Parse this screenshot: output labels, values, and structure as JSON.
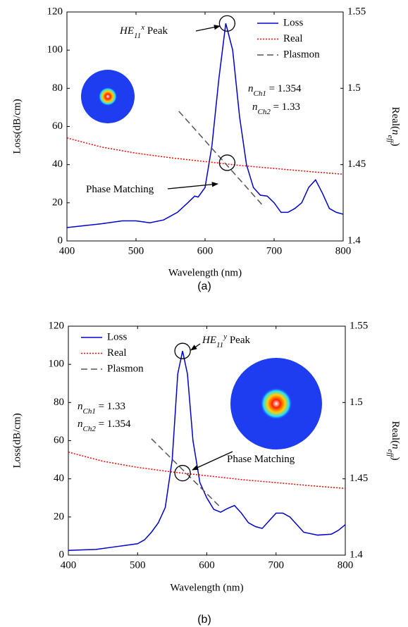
{
  "chart_data": [
    {
      "type": "line",
      "caption": "(a)",
      "x_label": "Wavelength (nm)",
      "y_label": "Loss(dB/cm)",
      "y2_label": [
        {
          "text": "Real("
        },
        {
          "text": "n",
          "style": "it"
        },
        {
          "text": "eff",
          "style": "sub"
        },
        {
          "text": ")"
        }
      ],
      "xlim": [
        400,
        800
      ],
      "xticks": [
        400,
        500,
        600,
        700,
        800
      ],
      "ylim": [
        0,
        120
      ],
      "yticks": [
        0,
        20,
        40,
        60,
        80,
        100,
        120
      ],
      "y2lim": [
        1.4,
        1.55
      ],
      "y2ticks": [
        1.4,
        1.45,
        1.5,
        1.55
      ],
      "legend": "upper right",
      "series": [
        {
          "name": "Loss",
          "color": "#0000cc",
          "dash": "solid",
          "x": [
            400,
            450,
            480,
            500,
            520,
            540,
            560,
            575,
            585,
            590,
            600,
            610,
            620,
            630,
            640,
            650,
            660,
            670,
            680,
            690,
            700,
            710,
            720,
            730,
            740,
            750,
            760,
            770,
            780,
            790,
            800
          ],
          "values": [
            7,
            9,
            10.5,
            10.5,
            9.5,
            11,
            15,
            20,
            23.5,
            23,
            28,
            50,
            85,
            114,
            100,
            65,
            40,
            28,
            24,
            23.5,
            20,
            15,
            15,
            17,
            20,
            28,
            32,
            25,
            17,
            15,
            14
          ]
        },
        {
          "name": "Real",
          "color": "#ff0000",
          "dash": "dotted",
          "axis": "y2",
          "x": [
            400,
            450,
            500,
            550,
            600,
            650,
            700,
            750,
            800
          ],
          "values": [
            1.4675,
            1.4615,
            1.4575,
            1.4545,
            1.452,
            1.4495,
            1.4475,
            1.4455,
            1.4437
          ]
        },
        {
          "name": "Plasmon",
          "color": "#555555",
          "dash": "dashed",
          "axis": "y2",
          "x": [
            562,
            685
          ],
          "values": [
            1.485,
            1.4225
          ]
        }
      ],
      "annotations": [
        [
          {
            "text": "HE",
            "style": "it"
          },
          {
            "text": "11",
            "style": "sub"
          },
          {
            "text": "x",
            "style": "sup"
          },
          {
            "text": " Peak"
          }
        ],
        [
          {
            "text": "Phase Matching"
          }
        ],
        [
          {
            "text": "n",
            "style": "it"
          },
          {
            "text": "Ch1",
            "style": "sub"
          },
          {
            "text": " = 1.354"
          }
        ],
        [
          {
            "text": "n",
            "style": "it"
          },
          {
            "text": "Ch2",
            "style": "sub"
          },
          {
            "text": " = 1.33"
          }
        ]
      ]
    },
    {
      "type": "line",
      "caption": "(b)",
      "x_label": "Wavelength (nm)",
      "y_label": "Loss(dB/cm)",
      "y2_label": [
        {
          "text": "Real("
        },
        {
          "text": "n",
          "style": "it"
        },
        {
          "text": "eff",
          "style": "sub"
        },
        {
          "text": ")"
        }
      ],
      "xlim": [
        400,
        800
      ],
      "xticks": [
        400,
        500,
        600,
        700,
        800
      ],
      "ylim": [
        0,
        120
      ],
      "yticks": [
        0,
        20,
        40,
        60,
        80,
        100,
        120
      ],
      "y2lim": [
        1.4,
        1.55
      ],
      "y2ticks": [
        1.4,
        1.45,
        1.5,
        1.55
      ],
      "legend": "upper left",
      "series": [
        {
          "name": "Loss",
          "color": "#0000cc",
          "dash": "solid",
          "x": [
            400,
            440,
            470,
            480,
            500,
            510,
            520,
            530,
            540,
            550,
            558,
            565,
            572,
            580,
            590,
            600,
            610,
            620,
            630,
            640,
            650,
            660,
            670,
            680,
            690,
            700,
            710,
            720,
            730,
            740,
            760,
            780,
            790,
            800
          ],
          "values": [
            2.5,
            3,
            4.5,
            5,
            6,
            8,
            12,
            17,
            25,
            50,
            95,
            107,
            95,
            60,
            38,
            30,
            24,
            22.5,
            24.5,
            26,
            22,
            17,
            15,
            14,
            18,
            22,
            22,
            20,
            16,
            12,
            10.5,
            11,
            13,
            16
          ]
        },
        {
          "name": "Real",
          "color": "#ff0000",
          "dash": "dotted",
          "axis": "y2",
          "x": [
            400,
            450,
            500,
            550,
            600,
            650,
            700,
            750,
            800
          ],
          "values": [
            1.4675,
            1.4615,
            1.4575,
            1.4545,
            1.452,
            1.4495,
            1.4475,
            1.4455,
            1.4437
          ]
        },
        {
          "name": "Plasmon",
          "color": "#555555",
          "dash": "dashed",
          "axis": "y2",
          "x": [
            520,
            620
          ],
          "values": [
            1.47625,
            1.43125
          ]
        }
      ],
      "annotations": [
        [
          {
            "text": "HE",
            "style": "it"
          },
          {
            "text": "11",
            "style": "sub"
          },
          {
            "text": "y",
            "style": "sup"
          },
          {
            "text": " Peak"
          }
        ],
        [
          {
            "text": "Phase Matching"
          }
        ],
        [
          {
            "text": "n",
            "style": "it"
          },
          {
            "text": "Ch1",
            "style": "sub"
          },
          {
            "text": " = 1.33"
          }
        ],
        [
          {
            "text": "n",
            "style": "it"
          },
          {
            "text": "Ch2",
            "style": "sub"
          },
          {
            "text": " = 1.354"
          }
        ]
      ]
    }
  ]
}
